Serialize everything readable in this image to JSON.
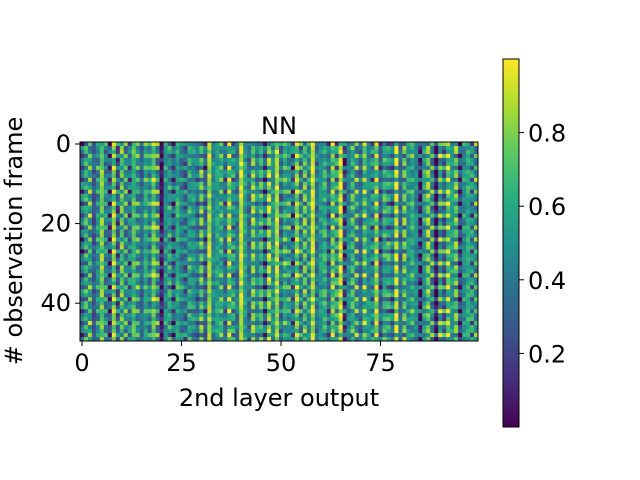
{
  "chart_data": {
    "type": "heatmap",
    "title": "NN",
    "xlabel": "2nd layer output",
    "ylabel": "# observation frame",
    "rows": 50,
    "cols": 100,
    "x_ticks": [
      "0",
      "25",
      "50",
      "75"
    ],
    "x_tick_values": [
      0,
      25,
      50,
      75
    ],
    "y_ticks": [
      "0",
      "20",
      "40"
    ],
    "y_tick_values": [
      0,
      20,
      40
    ],
    "colorbar": {
      "colormap": "viridis",
      "range": [
        0.0,
        1.0
      ],
      "ticks": [
        "0.2",
        "0.4",
        "0.6",
        "0.8"
      ],
      "tick_values": [
        0.2,
        0.4,
        0.6,
        0.8
      ]
    },
    "column_means": [
      0.35,
      0.55,
      0.6,
      0.3,
      0.5,
      0.75,
      0.45,
      0.25,
      0.8,
      0.3,
      0.65,
      0.5,
      0.4,
      0.7,
      0.55,
      0.35,
      0.6,
      0.45,
      0.75,
      0.5,
      0.05,
      0.5,
      0.55,
      0.3,
      0.6,
      0.45,
      0.35,
      0.55,
      0.5,
      0.4,
      0.65,
      0.3,
      0.85,
      0.45,
      0.55,
      0.6,
      0.35,
      0.8,
      0.5,
      0.4,
      0.9,
      0.55,
      0.35,
      0.7,
      0.45,
      0.6,
      0.3,
      0.75,
      0.5,
      0.85,
      0.4,
      0.6,
      0.55,
      0.35,
      0.8,
      0.45,
      0.65,
      0.5,
      0.9,
      0.4,
      0.55,
      0.6,
      0.35,
      0.75,
      0.5,
      0.9,
      0.25,
      0.45,
      0.6,
      0.55,
      0.35,
      0.7,
      0.5,
      0.45,
      0.8,
      0.3,
      0.6,
      0.55,
      0.4,
      0.85,
      0.35,
      0.65,
      0.5,
      0.6,
      0.45,
      0.15,
      0.55,
      0.7,
      0.5,
      0.1,
      0.6,
      0.4,
      0.75,
      0.55,
      0.65,
      0.2,
      0.5,
      0.6,
      0.45,
      0.55
    ],
    "row_pattern_amplitude": 0.3
  }
}
